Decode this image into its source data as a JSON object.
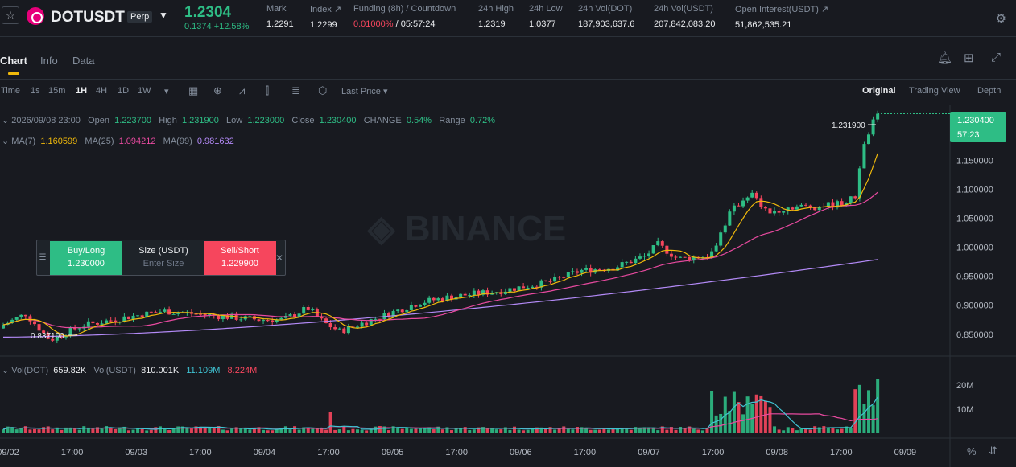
{
  "header": {
    "symbol": "DOTUSDT",
    "contract_type": "Perp",
    "last_price": "1.2304",
    "change": "0.1374 +12.58%",
    "stats": [
      {
        "label": "Mark",
        "value": "1.2291"
      },
      {
        "label": "Index ↗",
        "value": "1.2299"
      },
      {
        "label": "Funding (8h) / Countdown",
        "value_red": "0.01000%",
        "value": " / 05:57:24"
      },
      {
        "label": "24h High",
        "value": "1.2319"
      },
      {
        "label": "24h Low",
        "value": "1.0377"
      },
      {
        "label": "24h Vol(DOT)",
        "value": "187,903,637.6"
      },
      {
        "label": "24h Vol(USDT)",
        "value": "207,842,083.20"
      },
      {
        "label": "Open Interest(USDT) ↗",
        "value": "51,862,535.21"
      }
    ]
  },
  "tabs": [
    "Chart",
    "Info",
    "Data"
  ],
  "toolbar": {
    "intervals": [
      "Time",
      "1s",
      "15m",
      "1H",
      "4H",
      "1D",
      "1W"
    ],
    "active_interval": "1H",
    "price_type": "Last Price",
    "views": [
      "Original",
      "Trading View",
      "Depth"
    ],
    "active_view": "Original"
  },
  "legend": {
    "date": "2026/09/08 23:00",
    "open_label": "Open",
    "open": "1.223700",
    "high_label": "High",
    "high": "1.231900",
    "low_label": "Low",
    "low": "1.223000",
    "close_label": "Close",
    "close": "1.230400",
    "change_label": "CHANGE",
    "change": "0.54%",
    "range_label": "Range",
    "range": "0.72%",
    "ma7_label": "MA(7)",
    "ma7": "1.160599",
    "ma25_label": "MA(25)",
    "ma25": "1.094212",
    "ma99_label": "MA(99)",
    "ma99": "0.981632"
  },
  "vol_legend": {
    "vol_dot_label": "Vol(DOT)",
    "vol_dot": "659.82K",
    "vol_usdt_label": "Vol(USDT)",
    "vol_usdt": "810.001K",
    "ma1": "11.109M",
    "ma2": "8.224M"
  },
  "order_widget": {
    "buy_label": "Buy/Long",
    "buy_price": "1.230000",
    "size_label": "Size (USDT)",
    "size_placeholder": "Enter Size",
    "sell_label": "Sell/Short",
    "sell_price": "1.229900"
  },
  "chart_data": {
    "type": "candlestick",
    "watermark": "BINANCE",
    "price_axis": {
      "ticks": [
        "0.850000",
        "0.900000",
        "0.950000",
        "1.000000",
        "1.050000",
        "1.100000",
        "1.150000",
        "1.200000"
      ],
      "range": [
        0.815,
        1.245
      ]
    },
    "volume_axis": {
      "ticks": [
        "10M",
        "20M"
      ],
      "max": 28000000
    },
    "time_axis": [
      "09/02",
      "17:00",
      "09/03",
      "17:00",
      "09/04",
      "17:00",
      "09/05",
      "17:00",
      "09/06",
      "17:00",
      "09/07",
      "17:00",
      "09/08",
      "17:00",
      "09/09"
    ],
    "current_price_tag": "1.230400",
    "countdown_tag": "57:23",
    "high_marker": "1.231900",
    "low_marker": "0.837100",
    "colors": {
      "up": "#2ebd85",
      "down": "#f6465d",
      "ma7": "#f0b90b",
      "ma25": "#e94aa0",
      "ma99": "#b38af7",
      "vol_ma1": "#40c4d4",
      "vol_ma2": "#e94aa0"
    }
  }
}
